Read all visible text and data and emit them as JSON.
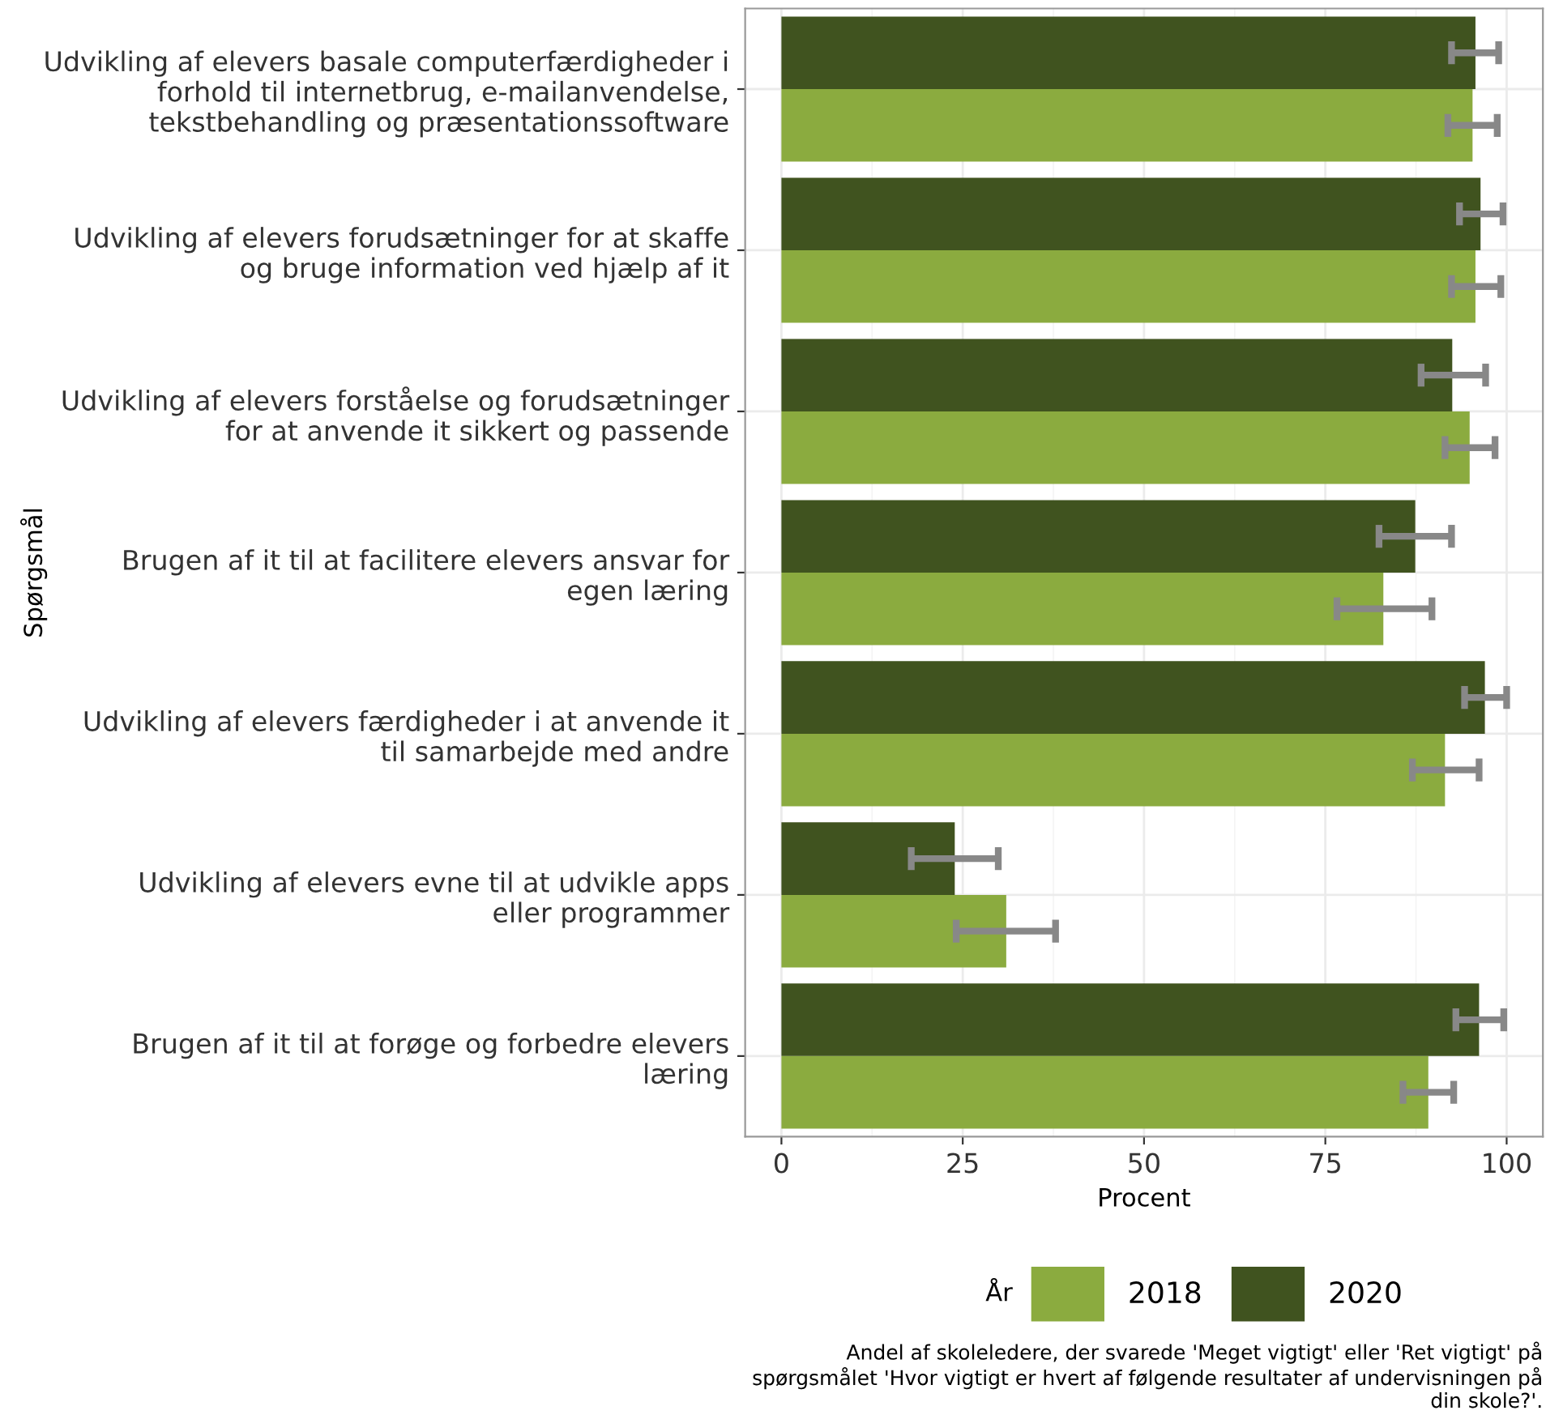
{
  "chart_data": {
    "type": "bar",
    "orientation": "horizontal",
    "xlabel": "Procent",
    "ylabel": "Spørgsmål",
    "legend_title": "År",
    "legend": "bottom",
    "grid": true,
    "categories": [
      "Udvikling af elevers basale computerfærdigheder i\nforhold til internetbrug, e-mailanvendelse,\ntekstbehandling og præsentationssoftware",
      "Udvikling af elevers forudsætninger for at skaffe\nog bruge information ved hjælp af it",
      "Udvikling af elevers forståelse og forudsætninger\nfor at anvende it sikkert og passende",
      "Brugen af it til at facilitere elevers ansvar for\negen læring",
      "Udvikling af elevers færdigheder i at anvende it\ntil samarbejde med andre",
      "Udvikling af elevers evne til at udvikle apps\neller programmer",
      "Brugen af it til at forøge og forbedre elevers\nlæring"
    ],
    "series": [
      {
        "name": "2018",
        "color": "#8bab3f",
        "values": [
          95.3,
          95.7,
          94.9,
          83.0,
          91.5,
          31.0,
          89.2
        ],
        "errors": [
          [
            91.9,
            98.7
          ],
          [
            92.4,
            99.2
          ],
          [
            91.5,
            98.4
          ],
          [
            76.6,
            89.7
          ],
          [
            87.0,
            96.2
          ],
          [
            24.1,
            37.8
          ],
          [
            85.7,
            92.7
          ]
        ]
      },
      {
        "name": "2020",
        "color": "#40531f",
        "values": [
          95.7,
          96.4,
          92.5,
          87.4,
          97.0,
          23.9,
          96.2
        ],
        "errors": [
          [
            92.4,
            98.9
          ],
          [
            93.5,
            99.5
          ],
          [
            88.2,
            97.1
          ],
          [
            82.4,
            92.4
          ],
          [
            94.2,
            100
          ],
          [
            17.9,
            29.9
          ],
          [
            93.0,
            99.6
          ]
        ]
      }
    ],
    "xlim": [
      -5,
      105
    ],
    "xticks": [
      0,
      25,
      50,
      75,
      100
    ],
    "annotations": [
      "Andel af skoleledere, der svarede 'Meget vigtigt' eller 'Ret vigtigt' på\nspørgsmålet 'Hvor vigtigt er hvert af følgende resultater af undervisningen på\ndin skole?'."
    ]
  }
}
